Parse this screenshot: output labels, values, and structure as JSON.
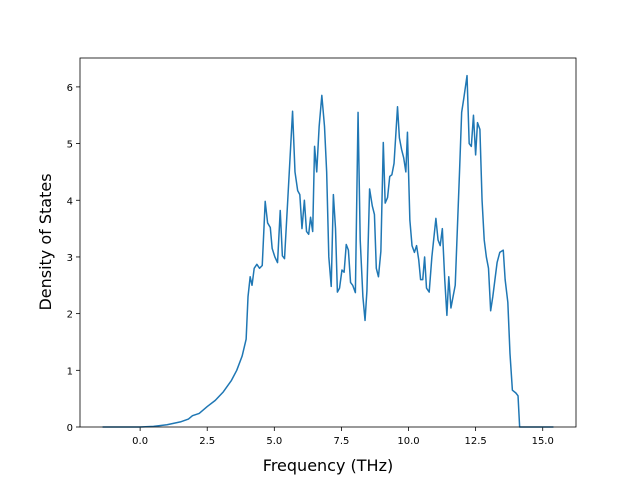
{
  "chart_data": {
    "type": "line",
    "xlabel": "Frequency (THz)",
    "ylabel": "Density of States",
    "xlim": [
      -2.24,
      16.24
    ],
    "ylim": [
      0,
      6.51
    ],
    "xticks": [
      {
        "value": 0,
        "label": "0.0"
      },
      2.5,
      {
        "value": 5,
        "label": "5.0"
      },
      7.5,
      {
        "value": 10,
        "label": "10.0"
      },
      12.5,
      {
        "value": 15,
        "label": "15.0"
      }
    ],
    "yticks": [
      0,
      1,
      2,
      3,
      4,
      5,
      6
    ],
    "series": [
      {
        "color": "#1f77b4",
        "x": [
          -1.4,
          0,
          0.5,
          1.0,
          1.5,
          1.8,
          1.95,
          2.2,
          2.5,
          2.8,
          3.1,
          3.4,
          3.6,
          3.8,
          3.95,
          4.02,
          4.1,
          4.17,
          4.25,
          4.35,
          4.45,
          4.55,
          4.66,
          4.75,
          4.85,
          4.92,
          5.02,
          5.12,
          5.22,
          5.3,
          5.38,
          5.5,
          5.68,
          5.77,
          5.87,
          5.95,
          6.03,
          6.12,
          6.2,
          6.28,
          6.35,
          6.43,
          6.5,
          6.58,
          6.67,
          6.77,
          6.87,
          6.95,
          7.03,
          7.12,
          7.2,
          7.28,
          7.35,
          7.43,
          7.52,
          7.6,
          7.68,
          7.76,
          7.84,
          7.92,
          8.02,
          8.12,
          8.2,
          8.3,
          8.38,
          8.45,
          8.55,
          8.65,
          8.73,
          8.8,
          8.88,
          8.97,
          9.06,
          9.13,
          9.22,
          9.3,
          9.38,
          9.46,
          9.59,
          9.66,
          9.74,
          9.82,
          9.9,
          9.96,
          10.05,
          10.13,
          10.22,
          10.3,
          10.38,
          10.45,
          10.53,
          10.6,
          10.67,
          10.77,
          10.87,
          11.02,
          11.1,
          11.18,
          11.26,
          11.35,
          11.43,
          11.5,
          11.58,
          11.66,
          11.74,
          11.82,
          11.9,
          11.98,
          12.06,
          12.18,
          12.26,
          12.34,
          12.42,
          12.5,
          12.57,
          12.66,
          12.74,
          12.82,
          12.9,
          12.98,
          13.06,
          13.14,
          13.22,
          13.3,
          13.4,
          13.53,
          13.6,
          13.7,
          13.78,
          13.87,
          14.0,
          14.08,
          14.14,
          14.5,
          15.4
        ],
        "values": [
          0,
          0,
          0.01,
          0.04,
          0.09,
          0.14,
          0.2,
          0.24,
          0.36,
          0.47,
          0.62,
          0.82,
          1.0,
          1.25,
          1.55,
          2.3,
          2.65,
          2.5,
          2.8,
          2.87,
          2.8,
          2.85,
          3.98,
          3.6,
          3.52,
          3.15,
          3.0,
          2.9,
          3.82,
          3.02,
          2.97,
          4.0,
          5.57,
          4.5,
          4.17,
          4.1,
          3.5,
          4.0,
          3.45,
          3.4,
          3.7,
          3.45,
          4.95,
          4.5,
          5.3,
          5.85,
          5.3,
          4.5,
          3.0,
          2.48,
          4.1,
          3.5,
          2.38,
          2.45,
          2.77,
          2.73,
          3.22,
          3.12,
          2.55,
          2.5,
          2.37,
          5.55,
          3.3,
          2.3,
          1.88,
          2.4,
          4.2,
          3.9,
          3.75,
          2.8,
          2.65,
          3.1,
          5.02,
          3.95,
          4.05,
          4.42,
          4.45,
          4.65,
          5.65,
          5.1,
          4.9,
          4.75,
          4.5,
          5.2,
          3.65,
          3.2,
          3.08,
          3.2,
          2.95,
          2.6,
          2.6,
          3.0,
          2.45,
          2.38,
          3.0,
          3.68,
          3.3,
          3.2,
          3.5,
          2.6,
          1.97,
          2.65,
          2.1,
          2.3,
          2.5,
          3.5,
          4.5,
          5.55,
          5.8,
          6.2,
          5.0,
          4.95,
          5.5,
          4.8,
          5.37,
          5.25,
          4.0,
          3.3,
          3.0,
          2.8,
          2.05,
          2.3,
          2.6,
          2.9,
          3.08,
          3.12,
          2.6,
          2.2,
          1.3,
          0.65,
          0.6,
          0.55,
          0,
          0,
          0
        ]
      }
    ]
  }
}
